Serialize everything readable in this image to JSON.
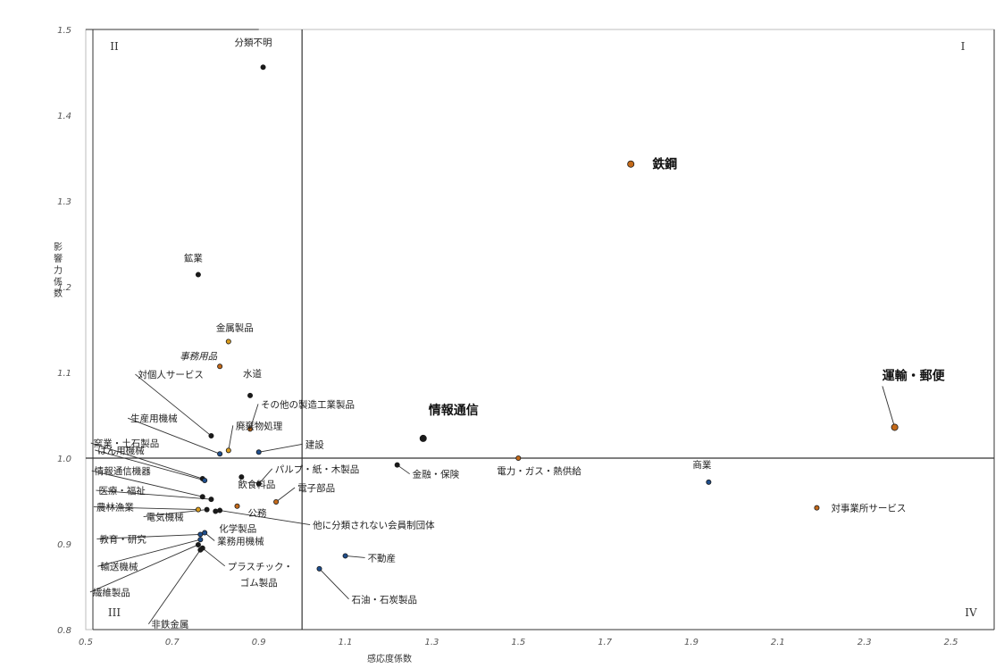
{
  "chart_data": {
    "type": "scatter",
    "title": "",
    "xlabel": "感応度係数",
    "ylabel": "影響力係数",
    "xlim": [
      0.5,
      2.6
    ],
    "ylim": [
      0.8,
      1.5
    ],
    "x_ticks": [
      "0.5",
      "0.7",
      "0.9",
      "1.1",
      "1.3",
      "1.5",
      "1.7",
      "1.9",
      "2.1",
      "2.3",
      "2.5"
    ],
    "y_ticks": [
      "0.8",
      "0.9",
      "1.0",
      "1.1",
      "1.2",
      "1.3",
      "1.4",
      "1.5"
    ],
    "reference_lines": {
      "x": 1.0,
      "y": 1.0
    },
    "quadrant_labels": [
      "I",
      "II",
      "III",
      "IV"
    ],
    "points": [
      {
        "label": "分類不明",
        "x": 0.91,
        "y": 1.456,
        "color": "#1a1a1a"
      },
      {
        "label": "鉄鋼",
        "x": 1.76,
        "y": 1.343,
        "color": "#c46a1a",
        "emphasis": true
      },
      {
        "label": "鉱業",
        "x": 0.76,
        "y": 1.214,
        "color": "#1a1a1a"
      },
      {
        "label": "金属製品",
        "x": 0.83,
        "y": 1.136,
        "color": "#d89b1e"
      },
      {
        "label": "事務用品",
        "x": 0.81,
        "y": 1.107,
        "color": "#c46a1a",
        "italic": true
      },
      {
        "label": "対個人サービス",
        "x": 0.79,
        "y": 1.026,
        "color": "#1a1a1a"
      },
      {
        "label": "水道",
        "x": 0.88,
        "y": 1.073,
        "color": "#1a1a1a"
      },
      {
        "label": "その他の製造工業製品",
        "x": 0.88,
        "y": 1.034,
        "color": "#c46a1a"
      },
      {
        "label": "廃棄物処理",
        "x": 0.83,
        "y": 1.009,
        "color": "#d89b1e"
      },
      {
        "label": "生産用機械",
        "x": 0.81,
        "y": 1.005,
        "color": "#1f4e8c"
      },
      {
        "label": "窯業・土石製品",
        "x": 0.77,
        "y": 0.976,
        "color": "#1a1a1a"
      },
      {
        "label": "はん用機械",
        "x": 0.775,
        "y": 0.974,
        "color": "#1f4e8c"
      },
      {
        "label": "建設",
        "x": 0.9,
        "y": 1.007,
        "color": "#1f4e8c"
      },
      {
        "label": "情報通信",
        "x": 1.28,
        "y": 1.023,
        "color": "#1a1a1a",
        "emphasis": true
      },
      {
        "label": "運輸・郵便",
        "x": 2.37,
        "y": 1.036,
        "color": "#c46a1a",
        "emphasis": true
      },
      {
        "label": "パルプ・紙・木製品",
        "x": 0.9,
        "y": 0.97,
        "color": "#1a1a1a"
      },
      {
        "label": "飲食料品",
        "x": 0.86,
        "y": 0.978,
        "color": "#1a1a1a"
      },
      {
        "label": "金融・保険",
        "x": 1.22,
        "y": 0.992,
        "color": "#1a1a1a"
      },
      {
        "label": "電力・ガス・熱供給",
        "x": 1.5,
        "y": 1.0,
        "color": "#c46a1a"
      },
      {
        "label": "商業",
        "x": 1.94,
        "y": 0.972,
        "color": "#1f4e8c"
      },
      {
        "label": "電子部品",
        "x": 0.94,
        "y": 0.949,
        "color": "#c46a1a"
      },
      {
        "label": "情報通信機器",
        "x": 0.77,
        "y": 0.955,
        "color": "#1a1a1a"
      },
      {
        "label": "医療・福祉",
        "x": 0.79,
        "y": 0.952,
        "color": "#1a1a1a"
      },
      {
        "label": "農林漁業",
        "x": 0.76,
        "y": 0.94,
        "color": "#d89b1e"
      },
      {
        "label": "電気機械",
        "x": 0.78,
        "y": 0.94,
        "color": "#1a1a1a"
      },
      {
        "label": "公務",
        "x": 0.85,
        "y": 0.944,
        "color": "#c46a1a"
      },
      {
        "label": "化学製品",
        "x": 0.8,
        "y": 0.938,
        "color": "#1a1a1a"
      },
      {
        "label": "他に分類されない会員制団体",
        "x": 0.81,
        "y": 0.939,
        "color": "#1a1a1a"
      },
      {
        "label": "対事業所サービス",
        "x": 2.19,
        "y": 0.942,
        "color": "#c46a1a"
      },
      {
        "label": "教育・研究",
        "x": 0.765,
        "y": 0.911,
        "color": "#1f4e8c"
      },
      {
        "label": "業務用機械",
        "x": 0.775,
        "y": 0.913,
        "color": "#1f4e8c"
      },
      {
        "label": "輸送機械",
        "x": 0.765,
        "y": 0.905,
        "color": "#1f4e8c"
      },
      {
        "label": "繊維製品",
        "x": 0.76,
        "y": 0.899,
        "color": "#1a1a1a"
      },
      {
        "label": "プラスチック・ゴム製品",
        "x": 0.77,
        "y": 0.895,
        "color": "#1a1a1a"
      },
      {
        "label": "非鉄金属",
        "x": 0.765,
        "y": 0.893,
        "color": "#1a1a1a"
      },
      {
        "label": "不動産",
        "x": 1.1,
        "y": 0.886,
        "color": "#1f4e8c"
      },
      {
        "label": "石油・石炭製品",
        "x": 1.04,
        "y": 0.871,
        "color": "#1f4e8c"
      }
    ]
  }
}
